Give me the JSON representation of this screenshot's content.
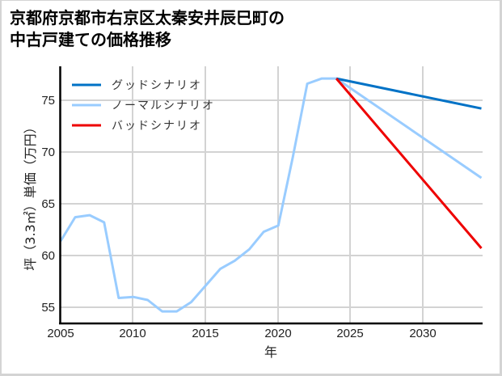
{
  "title": {
    "line1": "京都府京都市右京区太秦安井辰巳町の",
    "line2": "中古戸建ての価格推移"
  },
  "colors": {
    "good": "#0072c6",
    "normal": "#99ccff",
    "bad": "#ee0000",
    "grid": "#d3d3d3",
    "frame": "#d4d4d4"
  },
  "chart_data": {
    "type": "line",
    "title": "京都府京都市右京区太秦安井辰巳町の中古戸建ての価格推移",
    "xlabel": "年",
    "ylabel": "坪（3.3㎡）単価（万円）",
    "xlim": [
      2005,
      2034
    ],
    "ylim": [
      53.4,
      78.3
    ],
    "xticks": [
      2005,
      2010,
      2015,
      2020,
      2025,
      2030
    ],
    "yticks": [
      55,
      60,
      65,
      70,
      75
    ],
    "grid": true,
    "legend_position": "upper left",
    "legend": [
      "グッドシナリオ",
      "ノーマルシナリオ",
      "バッドシナリオ"
    ],
    "series": [
      {
        "name": "ノーマルシナリオ (実績)",
        "color": "#99ccff",
        "x": [
          2005,
          2006,
          2007,
          2008,
          2009,
          2010,
          2011,
          2012,
          2013,
          2014,
          2015,
          2016,
          2017,
          2018,
          2019,
          2020,
          2021,
          2022,
          2023,
          2024
        ],
        "values": [
          61.4,
          63.7,
          63.9,
          63.2,
          55.9,
          56.0,
          55.7,
          54.6,
          54.6,
          55.5,
          57.1,
          58.7,
          59.5,
          60.6,
          62.3,
          62.9,
          69.5,
          76.6,
          77.1,
          77.1
        ]
      },
      {
        "name": "グッドシナリオ",
        "color": "#0072c6",
        "x": [
          2024,
          2034
        ],
        "values": [
          77.1,
          74.2
        ]
      },
      {
        "name": "ノーマルシナリオ",
        "color": "#99ccff",
        "x": [
          2024,
          2034
        ],
        "values": [
          77.1,
          67.5
        ]
      },
      {
        "name": "バッドシナリオ",
        "color": "#ee0000",
        "x": [
          2024,
          2034
        ],
        "values": [
          77.1,
          60.7
        ]
      }
    ]
  },
  "axis": {
    "xlabel": "年",
    "ylabel": "坪（3.3㎡）単価（万円）",
    "xtick_labels": [
      "2005",
      "2010",
      "2015",
      "2020",
      "2025",
      "2030"
    ],
    "ytick_labels": [
      "75",
      "70",
      "65",
      "60",
      "55"
    ]
  },
  "legend": {
    "items": [
      {
        "label": "グッドシナリオ",
        "color": "#0072c6"
      },
      {
        "label": "ノーマルシナリオ",
        "color": "#99ccff"
      },
      {
        "label": "バッドシナリオ",
        "color": "#ee0000"
      }
    ]
  }
}
